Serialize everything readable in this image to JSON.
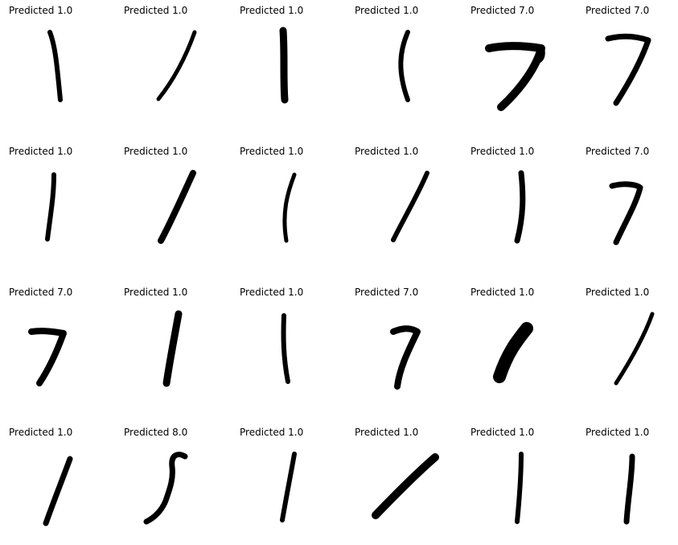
{
  "panels": [
    {
      "title": "Predicted 1.0",
      "digit": "1"
    },
    {
      "title": "Predicted 1.0",
      "digit": "1"
    },
    {
      "title": "Predicted 1.0",
      "digit": "1"
    },
    {
      "title": "Predicted 1.0",
      "digit": "1"
    },
    {
      "title": "Predicted 7.0",
      "digit": "7"
    },
    {
      "title": "Predicted 7.0",
      "digit": "7"
    },
    {
      "title": "Predicted 1.0",
      "digit": "1"
    },
    {
      "title": "Predicted 1.0",
      "digit": "1"
    },
    {
      "title": "Predicted 1.0",
      "digit": "1"
    },
    {
      "title": "Predicted 1.0",
      "digit": "1"
    },
    {
      "title": "Predicted 1.0",
      "digit": "1"
    },
    {
      "title": "Predicted 7.0",
      "digit": "7"
    },
    {
      "title": "Predicted 7.0",
      "digit": "7"
    },
    {
      "title": "Predicted 1.0",
      "digit": "1"
    },
    {
      "title": "Predicted 1.0",
      "digit": "1"
    },
    {
      "title": "Predicted 7.0",
      "digit": "7"
    },
    {
      "title": "Predicted 1.0",
      "digit": "1"
    },
    {
      "title": "Predicted 1.0",
      "digit": "1"
    },
    {
      "title": "Predicted 1.0",
      "digit": "1"
    },
    {
      "title": "Predicted 8.0",
      "digit": "8"
    },
    {
      "title": "Predicted 1.0",
      "digit": "1"
    },
    {
      "title": "Predicted 1.0",
      "digit": "1"
    },
    {
      "title": "Predicted 1.0",
      "digit": "1"
    },
    {
      "title": "Predicted 1.0",
      "digit": "1"
    }
  ]
}
